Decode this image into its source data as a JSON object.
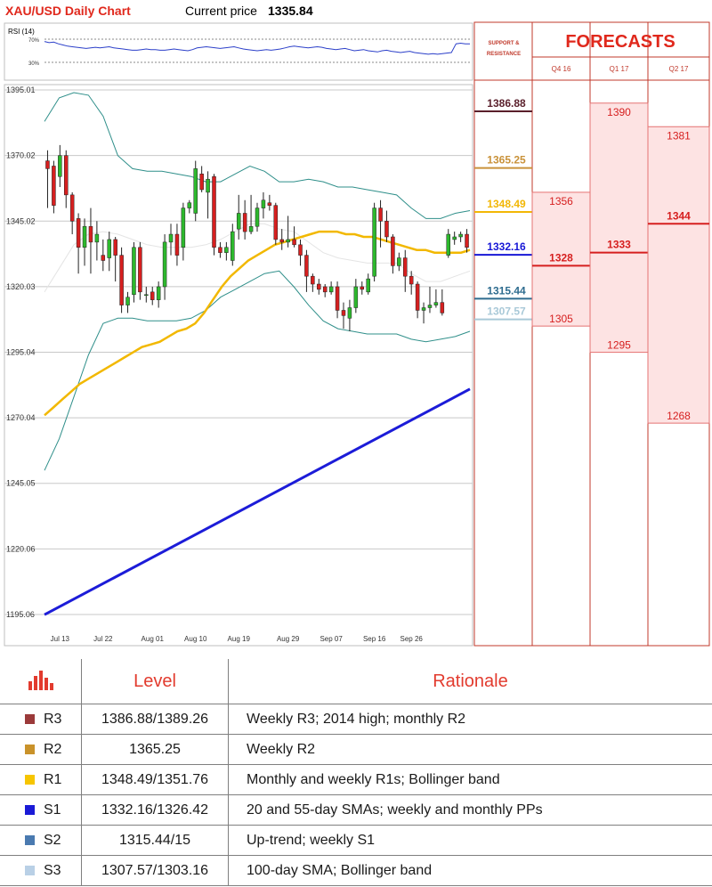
{
  "title": "XAU/USD Daily Chart",
  "price_label": "Current price",
  "price_value": "1335.84",
  "rsi": {
    "label": "RSI (14)",
    "ticks": [
      "70%",
      "30%"
    ],
    "values": [
      66,
      64,
      65,
      62,
      60,
      58,
      57,
      56,
      55,
      54,
      55,
      56,
      55,
      56,
      57,
      55,
      54,
      53,
      52,
      51,
      51,
      52,
      53,
      52,
      52,
      51,
      51,
      52,
      53,
      52,
      51,
      50,
      52,
      55,
      56,
      57,
      56,
      55,
      54,
      55,
      56,
      57,
      55,
      53,
      52,
      51,
      50,
      51,
      52,
      51,
      52,
      53,
      55,
      57,
      58,
      57,
      56,
      55,
      56,
      57,
      56,
      54,
      53,
      52,
      53,
      54,
      52,
      50,
      51,
      52,
      50,
      49,
      48,
      50,
      51,
      49,
      48,
      47,
      48,
      49,
      47,
      46,
      45,
      44,
      45,
      44,
      45,
      46,
      47,
      62,
      63,
      62,
      62
    ]
  },
  "chart_data": {
    "type": "candlestick",
    "ylim": [
      1190,
      1400
    ],
    "y_ticks": [
      "1395.01",
      "1370.02",
      "1345.02",
      "1320.03",
      "1295.04",
      "1270.04",
      "1245.05",
      "1220.06",
      "1195.06"
    ],
    "x_ticks": [
      "Jul 13",
      "Jul 22",
      "Aug 01",
      "Aug 10",
      "Aug 19",
      "Aug 29",
      "Sep 07",
      "Sep 16",
      "Sep 26"
    ],
    "x_tick_index": [
      2,
      9,
      17,
      24,
      31,
      39,
      46,
      53,
      59
    ],
    "candles": [
      [
        1368,
        1372,
        1350,
        1365
      ],
      [
        1366,
        1368,
        1348,
        1351
      ],
      [
        1362,
        1374,
        1358,
        1370
      ],
      [
        1370,
        1372,
        1350,
        1355
      ],
      [
        1355,
        1356,
        1340,
        1345
      ],
      [
        1346,
        1348,
        1325,
        1335
      ],
      [
        1335,
        1346,
        1328,
        1343
      ],
      [
        1343,
        1350,
        1325,
        1337
      ],
      [
        1337,
        1345,
        1330,
        1340
      ],
      [
        1332,
        1338,
        1326,
        1330
      ],
      [
        1331,
        1341,
        1326,
        1338
      ],
      [
        1338,
        1339,
        1322,
        1332
      ],
      [
        1332,
        1335,
        1310,
        1313
      ],
      [
        1313,
        1318,
        1310,
        1316
      ],
      [
        1317,
        1337,
        1314,
        1335
      ],
      [
        1335,
        1337,
        1315,
        1318
      ],
      [
        1317,
        1320,
        1314,
        1317
      ],
      [
        1318,
        1320,
        1313,
        1315
      ],
      [
        1315,
        1322,
        1312,
        1320
      ],
      [
        1320,
        1340,
        1315,
        1337
      ],
      [
        1337,
        1344,
        1332,
        1340
      ],
      [
        1340,
        1344,
        1328,
        1332
      ],
      [
        1335,
        1352,
        1330,
        1350
      ],
      [
        1350,
        1353,
        1348,
        1352
      ],
      [
        1348,
        1368,
        1345,
        1365
      ],
      [
        1363,
        1366,
        1356,
        1357
      ],
      [
        1356,
        1364,
        1346,
        1361
      ],
      [
        1362,
        1363,
        1332,
        1335
      ],
      [
        1335,
        1337,
        1331,
        1333
      ],
      [
        1333,
        1337,
        1330,
        1335
      ],
      [
        1330,
        1344,
        1328,
        1341
      ],
      [
        1342,
        1355,
        1338,
        1348
      ],
      [
        1348,
        1353,
        1338,
        1341
      ],
      [
        1341,
        1355,
        1340,
        1343
      ],
      [
        1343,
        1352,
        1341,
        1350
      ],
      [
        1350,
        1356,
        1346,
        1353
      ],
      [
        1352,
        1355,
        1349,
        1351
      ],
      [
        1351,
        1352,
        1336,
        1338
      ],
      [
        1338,
        1342,
        1334,
        1337
      ],
      [
        1337,
        1347,
        1335,
        1338
      ],
      [
        1338,
        1343,
        1335,
        1336
      ],
      [
        1336,
        1338,
        1328,
        1332
      ],
      [
        1332,
        1334,
        1318,
        1324
      ],
      [
        1324,
        1325,
        1318,
        1321
      ],
      [
        1321,
        1323,
        1317,
        1319
      ],
      [
        1320,
        1321,
        1316,
        1318
      ],
      [
        1318,
        1322,
        1317,
        1320
      ],
      [
        1320,
        1322,
        1308,
        1311
      ],
      [
        1311,
        1314,
        1304,
        1309
      ],
      [
        1308,
        1315,
        1303,
        1312
      ],
      [
        1312,
        1323,
        1310,
        1320
      ],
      [
        1320,
        1322,
        1317,
        1319
      ],
      [
        1318,
        1325,
        1317,
        1323
      ],
      [
        1324,
        1352,
        1322,
        1350
      ],
      [
        1350,
        1353,
        1335,
        1345
      ],
      [
        1345,
        1349,
        1337,
        1339
      ],
      [
        1339,
        1340,
        1325,
        1328
      ],
      [
        1328,
        1333,
        1326,
        1331
      ],
      [
        1331,
        1334,
        1318,
        1324
      ],
      [
        1324,
        1326,
        1317,
        1321
      ],
      [
        1321,
        1322,
        1308,
        1311
      ],
      [
        1311,
        1314,
        1306,
        1312
      ],
      [
        1312,
        1320,
        1310,
        1313
      ],
      [
        1313,
        1319,
        1312,
        1314
      ],
      [
        1314,
        1319,
        1309,
        1310
      ],
      [
        1332,
        1342,
        1331,
        1340
      ],
      [
        1338,
        1341,
        1336,
        1339
      ],
      [
        1339,
        1341,
        1337,
        1340
      ],
      [
        1340,
        1342,
        1333,
        1335
      ]
    ],
    "candles_x": [
      0,
      1,
      2,
      3,
      4,
      5,
      6,
      7,
      8,
      9,
      10,
      11,
      12,
      13,
      14,
      15,
      16,
      17,
      18,
      19,
      20,
      21,
      22,
      23,
      24,
      25,
      26,
      27,
      28,
      29,
      30,
      31,
      32,
      33,
      34,
      35,
      36,
      37,
      38,
      39,
      40,
      41,
      42,
      43,
      44,
      45,
      46,
      47,
      48,
      49,
      50,
      51,
      52,
      53,
      54,
      55,
      56,
      57,
      58,
      59,
      60,
      61,
      62,
      63,
      64,
      65,
      66,
      67,
      68
    ],
    "sma_yellow": [
      1271,
      1274,
      1277,
      1280,
      1283,
      1285,
      1287,
      1289,
      1291,
      1293,
      1295,
      1297,
      1298,
      1299,
      1301,
      1303,
      1304,
      1306,
      1310,
      1315,
      1320,
      1324,
      1327,
      1330,
      1332,
      1334,
      1336,
      1337,
      1338,
      1339,
      1340,
      1341,
      1341,
      1341,
      1340,
      1340,
      1339,
      1339,
      1338,
      1337,
      1336,
      1335,
      1334,
      1334,
      1333,
      1333,
      1333,
      1333,
      1334
    ],
    "sma_yellow_x": [
      0,
      2,
      4,
      6,
      8,
      10,
      12,
      14,
      16,
      18,
      20,
      22,
      24,
      26,
      28,
      30,
      32,
      34,
      36,
      38,
      40,
      42,
      44,
      46,
      48,
      50,
      52,
      54,
      56,
      58,
      60,
      62,
      64,
      66,
      68,
      70,
      72,
      74,
      76,
      78,
      80,
      82,
      84,
      86,
      88,
      90,
      92,
      94,
      96
    ],
    "sma_blue_start": 1195,
    "sma_blue_end": 1281,
    "bb_upper": [
      1383,
      1392,
      1394,
      1393,
      1385,
      1370,
      1365,
      1364,
      1364,
      1363,
      1362,
      1360,
      1360,
      1363,
      1366,
      1364,
      1360,
      1360,
      1361,
      1360,
      1358,
      1358,
      1357,
      1356,
      1355,
      1350,
      1346,
      1346,
      1348,
      1349
    ],
    "bb_lower": [
      1250,
      1262,
      1278,
      1294,
      1306,
      1308,
      1308,
      1307,
      1307,
      1307,
      1308,
      1311,
      1316,
      1319,
      1322,
      1325,
      1326,
      1320,
      1313,
      1307,
      1304,
      1303,
      1302,
      1302,
      1302,
      1300,
      1299,
      1300,
      1301,
      1303
    ],
    "bb_mid": [
      1318,
      1327,
      1336,
      1340,
      1341,
      1340,
      1338,
      1336,
      1335,
      1335,
      1335,
      1336,
      1338,
      1341,
      1344,
      1344,
      1342,
      1341,
      1337,
      1333,
      1331,
      1330,
      1329,
      1329,
      1329,
      1325,
      1322,
      1322,
      1324,
      1326
    ],
    "support_resistance_title": "SUPPORT & RESISTANCE",
    "levels": [
      {
        "value": "1386.88",
        "color": "#5a1f2b"
      },
      {
        "value": "1365.25",
        "color": "#c9923a"
      },
      {
        "value": "1348.49",
        "color": "#f2b705"
      },
      {
        "value": "1332.16",
        "color": "#1717d6"
      },
      {
        "value": "1315.44",
        "color": "#2e6c8f"
      },
      {
        "value": "1307.57",
        "color": "#a9c9d8"
      }
    ],
    "forecasts_title": "FORECASTS",
    "forecasts": [
      {
        "quarter": "Q4 16",
        "high": "1356",
        "mid": "1328",
        "low": "1305",
        "high_v": 1356,
        "mid_v": 1328,
        "low_v": 1305
      },
      {
        "quarter": "Q1 17",
        "high": "1390",
        "mid": "1333",
        "low": "1295",
        "high_v": 1390,
        "mid_v": 1333,
        "low_v": 1295
      },
      {
        "quarter": "Q2 17",
        "high": "1381",
        "mid": "1344",
        "low": "1268",
        "high_v": 1381,
        "mid_v": 1344,
        "low_v": 1268
      }
    ]
  },
  "table": {
    "header_level": "Level",
    "header_rationale": "Rationale",
    "rows": [
      {
        "tag": "R3",
        "color": "#9b3a3a",
        "level": "1386.88/1389.26",
        "rationale": "Weekly R3; 2014 high; monthly R2"
      },
      {
        "tag": "R2",
        "color": "#c9922a",
        "level": "1365.25",
        "rationale": "Weekly R2"
      },
      {
        "tag": "R1",
        "color": "#f6c500",
        "level": "1348.49/1351.76",
        "rationale": "Monthly and weekly R1s; Bollinger band"
      },
      {
        "tag": "S1",
        "color": "#1a1ad6",
        "level": "1332.16/1326.42",
        "rationale": "20 and 55-day SMAs; weekly and monthly PPs"
      },
      {
        "tag": "S2",
        "color": "#4a7ab0",
        "level": "1315.44/15",
        "rationale": "Up-trend; weekly S1"
      },
      {
        "tag": "S3",
        "color": "#b9d0e6",
        "level": "1307.57/1303.16",
        "rationale": "100-day SMA; Bollinger band"
      }
    ]
  }
}
